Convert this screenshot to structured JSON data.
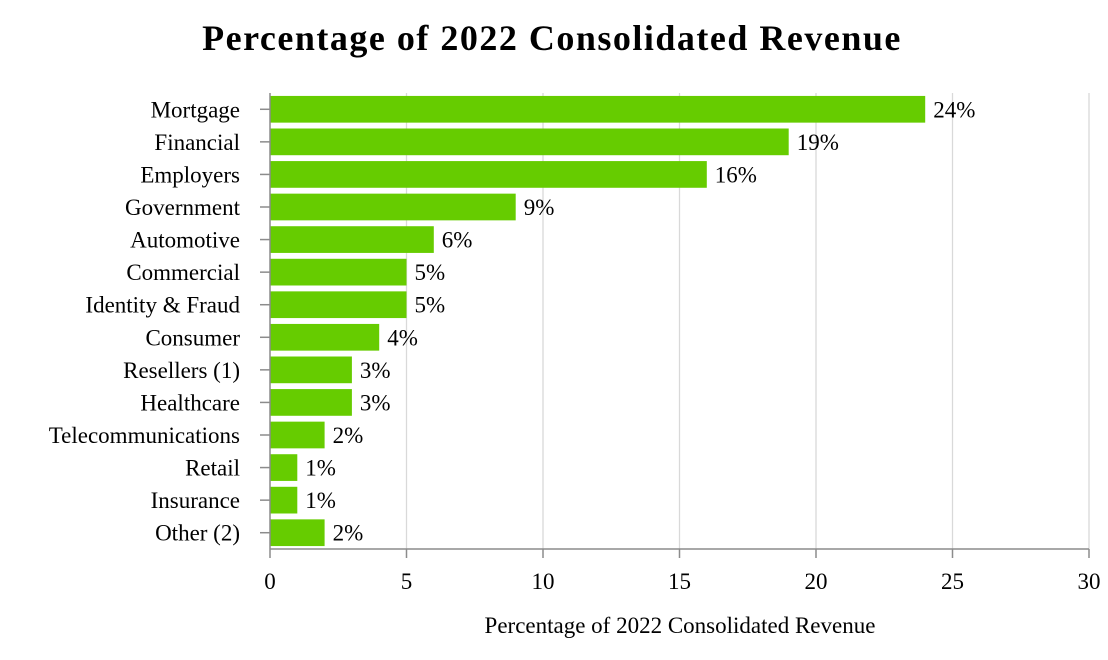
{
  "chart_data": {
    "type": "bar",
    "orientation": "horizontal",
    "title": "Percentage of 2022 Consolidated Revenue",
    "xlabel": "Percentage of 2022 Consolidated Revenue",
    "ylabel": "",
    "categories": [
      "Mortgage",
      "Financial",
      "Employers",
      "Government",
      "Automotive",
      "Commercial",
      "Identity & Fraud",
      "Consumer",
      "Resellers (1)",
      "Healthcare",
      "Telecommunications",
      "Retail",
      "Insurance",
      "Other (2)"
    ],
    "values": [
      24,
      19,
      16,
      9,
      6,
      5,
      5,
      4,
      3,
      3,
      2,
      1,
      1,
      2
    ],
    "data_labels": [
      "24%",
      "19%",
      "16%",
      "9%",
      "6%",
      "5%",
      "5%",
      "4%",
      "3%",
      "3%",
      "2%",
      "1%",
      "1%",
      "2%"
    ],
    "xlim": [
      0,
      30
    ],
    "xticks": [
      0,
      5,
      10,
      15,
      20,
      25,
      30
    ],
    "xtick_labels": [
      "0",
      "5",
      "10",
      "15",
      "20",
      "25",
      "30"
    ],
    "grid": true,
    "legend": "none",
    "bar_color": "#66cc00"
  }
}
